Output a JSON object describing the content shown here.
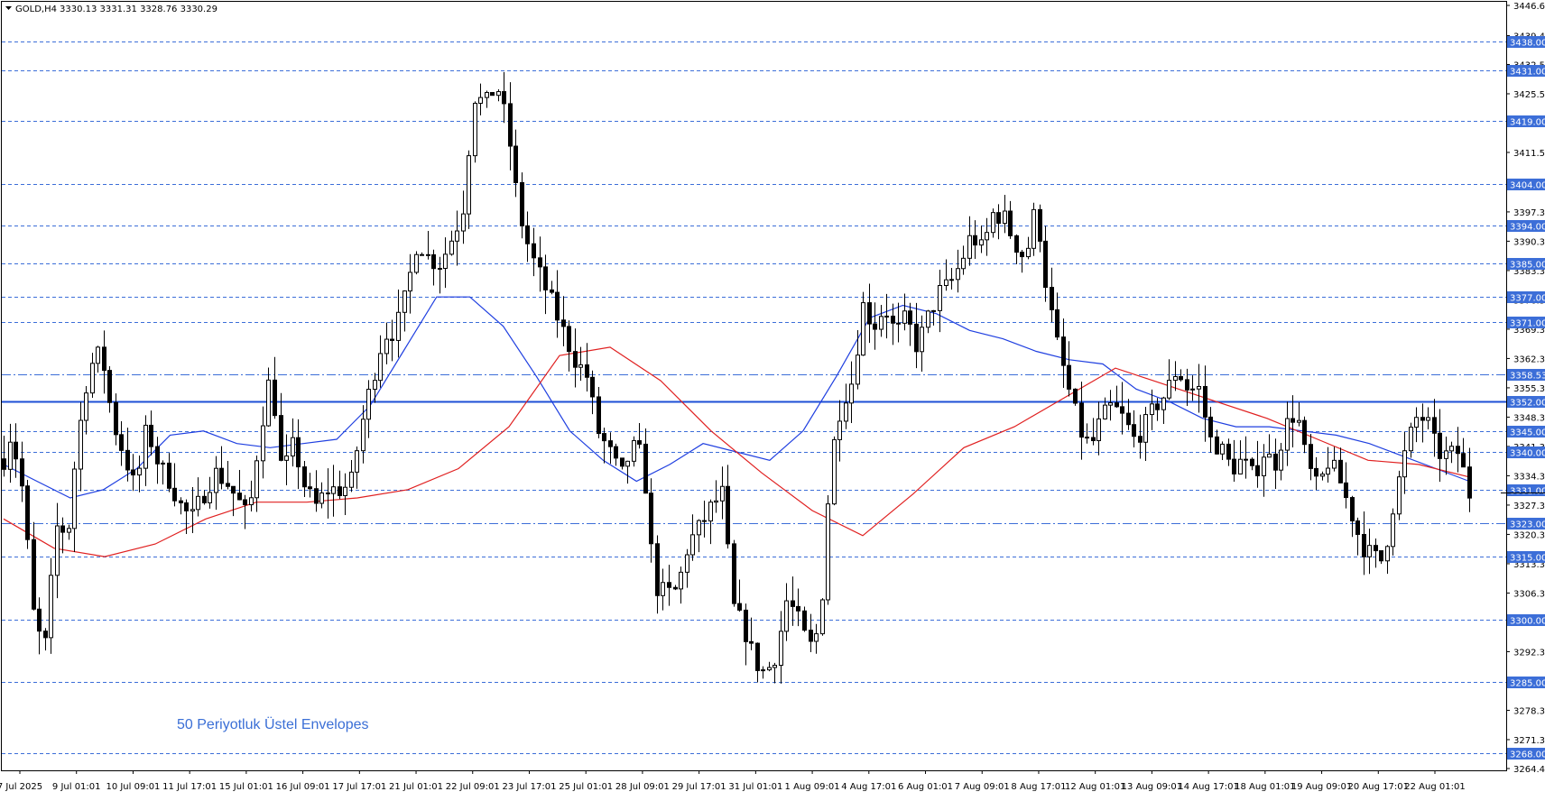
{
  "header": {
    "symbol_label": "GOLD,H4",
    "ohlc": "3330.13 3331.31 3328.76 3330.29"
  },
  "annotation": "50 Periyotluk Üstel Envelopes",
  "colors": {
    "bull_body": "#ffffff",
    "bear_body": "#000000",
    "wick": "#000000",
    "upper_envelope": "#1f3fe0",
    "lower_envelope": "#e02020",
    "level_line": "#3c6ed8",
    "level_label_bg": "#3c6ed8",
    "main_level_line": "#1e4fd6",
    "background": "#ffffff",
    "frame": "#000000"
  },
  "chart_data": {
    "type": "candlestick",
    "title": "",
    "xlabel": "",
    "ylabel": "",
    "ylim": [
      3264.4,
      3446.6
    ],
    "price_ticks": [
      "3446.60",
      "3439.40",
      "3432.50",
      "3425.50",
      "3418.60",
      "3411.50",
      "3404.30",
      "3397.30",
      "3390.30",
      "3383.30",
      "3376.30",
      "3369.30",
      "3362.30",
      "3355.30",
      "3348.30",
      "3341.30",
      "3334.30",
      "3327.30",
      "3320.30",
      "3313.30",
      "3306.30",
      "3299.30",
      "3292.30",
      "3285.30",
      "3278.30",
      "3271.30",
      "3264.40"
    ],
    "time_labels": [
      "7 Jul 2025",
      "9 Jul 01:01",
      "10 Jul 09:01",
      "11 Jul 17:01",
      "15 Jul 01:01",
      "16 Jul 09:01",
      "17 Jul 17:01",
      "21 Jul 01:01",
      "22 Jul 09:01",
      "23 Jul 17:01",
      "25 Jul 01:01",
      "28 Jul 09:01",
      "29 Jul 17:01",
      "31 Jul 01:01",
      "1 Aug 09:01",
      "4 Aug 17:01",
      "6 Aug 01:01",
      "7 Aug 09:01",
      "8 Aug 17:01",
      "12 Aug 01:01",
      "13 Aug 09:01",
      "14 Aug 17:01",
      "18 Aug 01:01",
      "19 Aug 09:01",
      "20 Aug 17:01",
      "22 Aug 01:01"
    ],
    "levels": [
      {
        "label": "3438.00",
        "value": 3438.0,
        "style": "dash"
      },
      {
        "label": "3431.00",
        "value": 3431.0,
        "style": "dash"
      },
      {
        "label": "3419.00",
        "value": 3419.0,
        "style": "dash"
      },
      {
        "label": "3404.00",
        "value": 3404.0,
        "style": "dash"
      },
      {
        "label": "3394.00",
        "value": 3394.0,
        "style": "dash"
      },
      {
        "label": "3385.00",
        "value": 3385.0,
        "style": "dash"
      },
      {
        "label": "3377.00",
        "value": 3377.0,
        "style": "dash"
      },
      {
        "label": "3371.00",
        "value": 3371.0,
        "style": "dash"
      },
      {
        "label": "3358.53",
        "value": 3358.53,
        "style": "dashdot"
      },
      {
        "label": "3352.00",
        "value": 3352.0,
        "style": "solid"
      },
      {
        "label": "3345.00",
        "value": 3345.0,
        "style": "dash"
      },
      {
        "label": "3340.00",
        "value": 3340.0,
        "style": "dash"
      },
      {
        "label": "3331.00",
        "value": 3331.0,
        "style": "dash"
      },
      {
        "label": "3323.00",
        "value": 3323.0,
        "style": "dashdot"
      },
      {
        "label": "3315.00",
        "value": 3315.0,
        "style": "dash"
      },
      {
        "label": "3300.00",
        "value": 3300.0,
        "style": "dash"
      },
      {
        "label": "3285.00",
        "value": 3285.0,
        "style": "dash"
      },
      {
        "label": "3268.00",
        "value": 3268.0,
        "style": "dash"
      }
    ],
    "current_price": 3330.29,
    "series": [
      {
        "name": "",
        "type": "line",
        "role": "upper_envelope",
        "values": [
          3337,
          3333,
          3329,
          3331,
          3336,
          3344,
          3345,
          3342,
          3341,
          3342,
          3343,
          3351,
          3364,
          3377,
          3377,
          3370,
          3358,
          3345,
          3338,
          3333,
          3337,
          3342,
          3340,
          3338,
          3345,
          3358,
          3372,
          3375,
          3373,
          3369,
          3367,
          3364,
          3362,
          3361,
          3355,
          3352,
          3348,
          3346,
          3346,
          3345,
          3344,
          3342,
          3339,
          3336,
          3333
        ]
      },
      {
        "name": "",
        "type": "line",
        "role": "lower_envelope",
        "values": [
          3324,
          3317,
          3315,
          3318,
          3324,
          3328,
          3328,
          3329,
          3331,
          3336,
          3346,
          3363,
          3365,
          3357,
          3345,
          3335,
          3326,
          3320,
          3330,
          3341,
          3346,
          3353,
          3360,
          3356,
          3352,
          3348,
          3343,
          3338,
          3337,
          3334
        ]
      },
      {
        "name": "",
        "type": "candlestick",
        "role": "price",
        "count": 250
      }
    ]
  }
}
